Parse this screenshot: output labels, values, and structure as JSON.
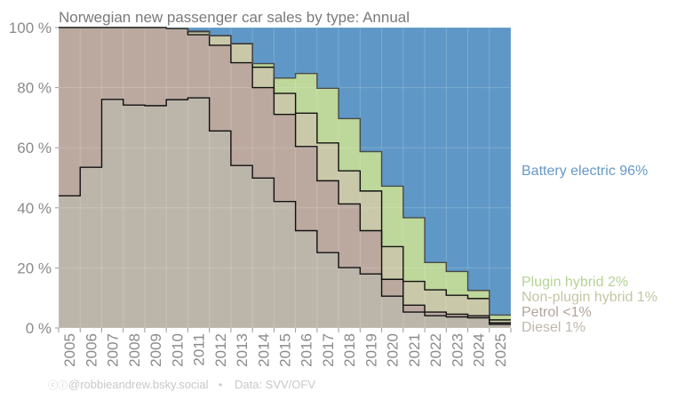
{
  "chart_data": {
    "type": "area",
    "title": "Norwegian new passenger car sales by type: Annual",
    "xlabel": "",
    "ylabel": "",
    "ylim": [
      0,
      100
    ],
    "y_ticks": [
      "0 %",
      "20 %",
      "40 %",
      "60 %",
      "80 %",
      "100 %"
    ],
    "y_tick_values": [
      0,
      20,
      40,
      60,
      80,
      100
    ],
    "grid": true,
    "stacked": true,
    "step": true,
    "legend_placement": "right",
    "categories": [
      "2005",
      "2006",
      "2007",
      "2008",
      "2009",
      "2010",
      "2011",
      "2012",
      "2013",
      "2014",
      "2015",
      "2016",
      "2017",
      "2018",
      "2019",
      "2020",
      "2021",
      "2022",
      "2023",
      "2024",
      "2025"
    ],
    "series": [
      {
        "name": "Diesel",
        "legend": "Diesel 1%",
        "color": "#bcb5aa",
        "legend_color": "#c0b8ae",
        "values": [
          44.0,
          53.5,
          76.1,
          74.2,
          74.0,
          76.0,
          76.6,
          65.6,
          54.1,
          49.9,
          42.1,
          32.4,
          25.1,
          20.1,
          18.0,
          10.6,
          5.3,
          4.1,
          3.7,
          3.4,
          1.2
        ]
      },
      {
        "name": "Petrol",
        "legend": "Petrol <1%",
        "color": "#bba99f",
        "legend_color": "#b3a49a",
        "values": [
          56.0,
          46.5,
          23.9,
          25.8,
          26.0,
          23.6,
          21.0,
          28.5,
          34.2,
          30.1,
          29.0,
          28.0,
          23.9,
          21.2,
          14.4,
          5.6,
          2.3,
          1.2,
          0.9,
          0.7,
          0.5
        ]
      },
      {
        "name": "Non-plugin hybrid",
        "legend": "Non-plugin hybrid 1%",
        "color": "#c9c9aa",
        "legend_color": "#c5c5a5",
        "values": [
          0,
          0,
          0,
          0,
          0,
          0.1,
          1.0,
          3.2,
          6.3,
          6.8,
          7.0,
          11.1,
          12.6,
          11.0,
          13.2,
          10.9,
          7.9,
          7.4,
          6.3,
          5.7,
          1.0
        ]
      },
      {
        "name": "Plugin hybrid",
        "legend": "Plugin hybrid 2%",
        "color": "#bdd89a",
        "legend_color": "#b5d395",
        "values": [
          0,
          0,
          0,
          0,
          0,
          0,
          0.2,
          0.0,
          0.1,
          1.2,
          5.1,
          13.2,
          18.2,
          17.4,
          13.1,
          20.1,
          21.2,
          9.1,
          7.9,
          2.7,
          1.6
        ]
      },
      {
        "name": "Battery electric",
        "legend": "Battery electric 96%",
        "color": "#5f98c6",
        "legend_color": "#6699c8",
        "values": [
          0,
          0,
          0,
          0,
          0,
          0.3,
          1.2,
          2.7,
          5.3,
          12.0,
          16.8,
          15.3,
          20.2,
          30.3,
          41.3,
          52.8,
          63.3,
          78.2,
          81.2,
          87.5,
          95.7
        ]
      }
    ]
  },
  "footer": {
    "license_icons": "cc-by-icons",
    "credit": "@robbieandrew.bsky.social",
    "separator": "•",
    "source": "Data: SVV/OFV"
  }
}
